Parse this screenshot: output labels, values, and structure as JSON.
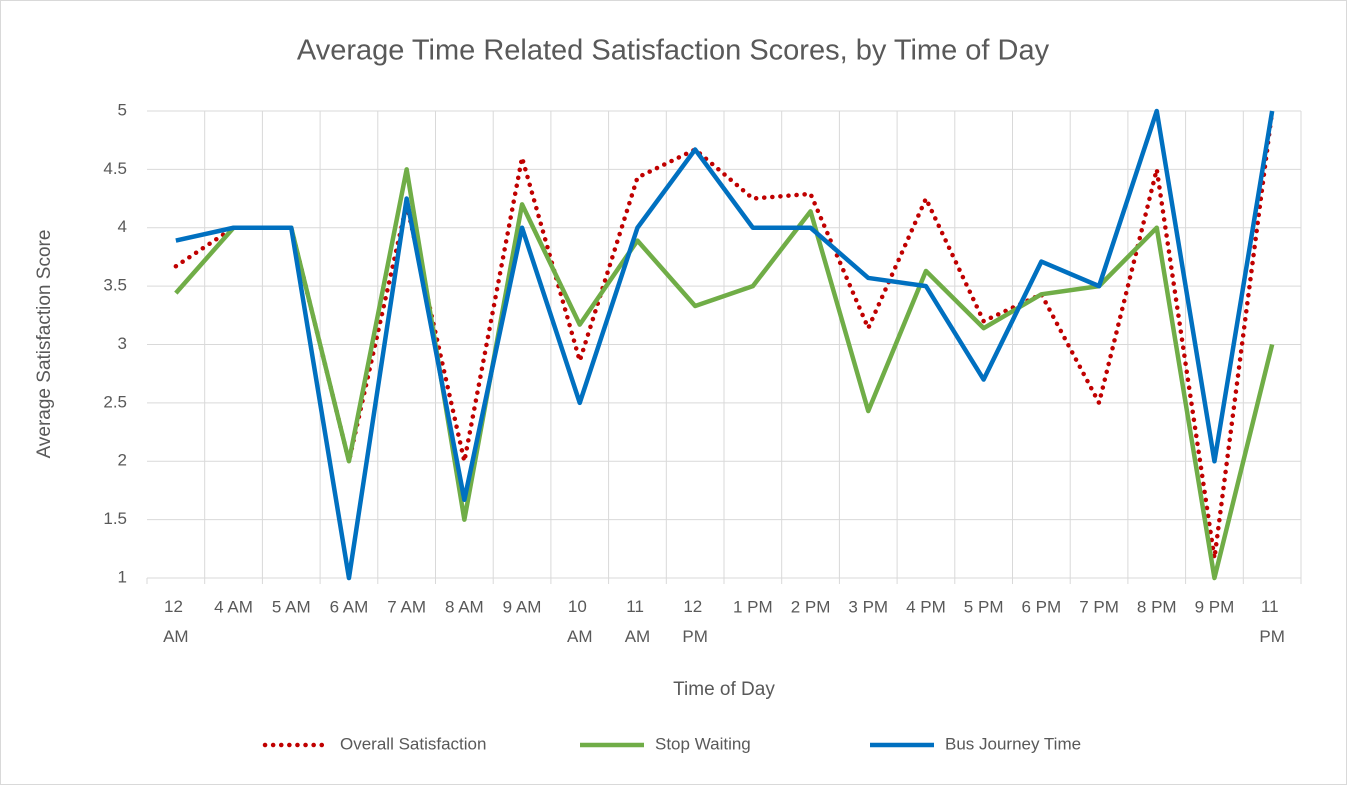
{
  "chart_data": {
    "type": "line",
    "title": "Average Time Related Satisfaction Scores, by Time of Day",
    "x_label": "Time of Day",
    "y_label": "Average Satisfaction Score",
    "categories": [
      "12 AM",
      "4 AM",
      "5 AM",
      "6 AM",
      "7 AM",
      "8 AM",
      "9 AM",
      "10 AM",
      "11 AM",
      "12 PM",
      "1 PM",
      "2 PM",
      "3 PM",
      "4 PM",
      "5 PM",
      "6 PM",
      "7 PM",
      "8 PM",
      "9 PM",
      "11 PM"
    ],
    "series": [
      {
        "name": "Overall Satisfaction",
        "color": "#c00000",
        "line_style": "dotted",
        "values": [
          3.67,
          4,
          4,
          2,
          4.2,
          2,
          4.6,
          2.86,
          4.43,
          4.67,
          4.25,
          4.29,
          3.14,
          4.25,
          3.2,
          3.43,
          2.5,
          4.5,
          1.17,
          5
        ]
      },
      {
        "name": "Stop Waiting",
        "color": "#70ad47",
        "line_style": "solid",
        "values": [
          3.44,
          4,
          4,
          2,
          4.5,
          1.5,
          4.2,
          3.17,
          3.89,
          3.33,
          3.5,
          4.14,
          2.43,
          3.63,
          3.14,
          3.43,
          3.5,
          4,
          1,
          3
        ]
      },
      {
        "name": "Bus Journey Time",
        "color": "#0070c0",
        "line_style": "solid",
        "values": [
          3.89,
          4,
          4,
          1,
          4.25,
          1.67,
          4,
          2.5,
          4,
          4.67,
          4,
          4,
          3.57,
          3.5,
          2.7,
          3.71,
          3.5,
          5,
          2,
          5
        ]
      }
    ],
    "ylim": [
      1,
      5
    ],
    "yticks": [
      1,
      1.5,
      2,
      2.5,
      3,
      3.5,
      4,
      4.5,
      5
    ],
    "grid": true,
    "legend": "bottom"
  }
}
